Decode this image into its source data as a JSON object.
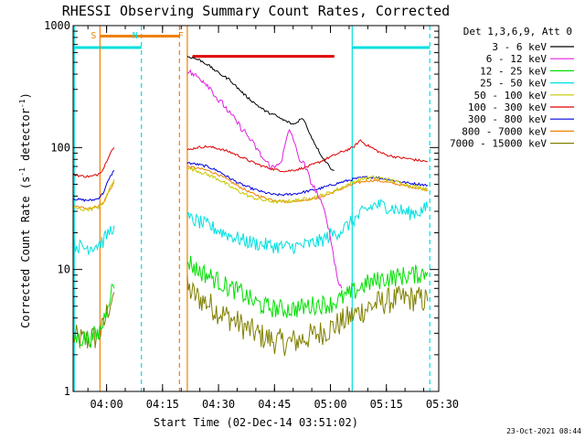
{
  "chart_data": {
    "type": "line",
    "title": "RHESSI Observing Summary Count Rates, Corrected",
    "xlabel": "Start Time (02-Dec-14 03:51:02)",
    "ylabel_main": "Corrected Count Rate (s",
    "ylabel_mid": " detector",
    "ylabel_end": ")",
    "ylabel_sup": "-1",
    "y_scale": "log",
    "ylim": [
      1,
      1000
    ],
    "xlim_minutes": [
      0,
      98
    ],
    "x_ticks": [
      {
        "label": "04:00",
        "minute": 8.97
      },
      {
        "label": "04:15",
        "minute": 23.97
      },
      {
        "label": "04:30",
        "minute": 38.97
      },
      {
        "label": "04:45",
        "minute": 53.97
      },
      {
        "label": "05:00",
        "minute": 68.97
      },
      {
        "label": "05:15",
        "minute": 83.97
      },
      {
        "label": "05:30",
        "minute": 98.97
      }
    ],
    "y_ticks": [
      {
        "label": "1",
        "value": 1
      },
      {
        "label": "10",
        "value": 10
      },
      {
        "label": "100",
        "value": 100
      },
      {
        "label": "1000",
        "value": 1000
      }
    ],
    "legend_header": "Det 1,3,6,9, Att 0",
    "series": [
      {
        "name": "3 - 6 keV",
        "color": "#000000",
        "points": [
          [
            30.6,
            560
          ],
          [
            32,
            545
          ],
          [
            34,
            520
          ],
          [
            36,
            480
          ],
          [
            38,
            430
          ],
          [
            40,
            390
          ],
          [
            42,
            360
          ],
          [
            44,
            310
          ],
          [
            46,
            270
          ],
          [
            48,
            240
          ],
          [
            50,
            215
          ],
          [
            52,
            195
          ],
          [
            54,
            185
          ],
          [
            56,
            170
          ],
          [
            58,
            160
          ],
          [
            59,
            155
          ],
          [
            60,
            160
          ],
          [
            61,
            175
          ],
          [
            62,
            165
          ],
          [
            63,
            140
          ],
          [
            64,
            120
          ],
          [
            65,
            105
          ],
          [
            66,
            92
          ],
          [
            67,
            82
          ],
          [
            68,
            75
          ],
          [
            69,
            68
          ],
          [
            70,
            65
          ]
        ]
      },
      {
        "name": "6 - 12 keV",
        "color": "#e020e0",
        "points": [
          [
            30.6,
            430
          ],
          [
            32,
            400
          ],
          [
            34,
            370
          ],
          [
            36,
            330
          ],
          [
            37,
            300
          ],
          [
            38,
            270
          ],
          [
            39,
            240
          ],
          [
            40,
            230
          ],
          [
            41,
            210
          ],
          [
            42,
            190
          ],
          [
            43,
            175
          ],
          [
            44,
            160
          ],
          [
            45,
            145
          ],
          [
            46,
            135
          ],
          [
            47,
            122
          ],
          [
            48,
            110
          ],
          [
            49,
            100
          ],
          [
            50,
            90
          ],
          [
            51,
            80
          ],
          [
            52,
            75
          ],
          [
            53,
            70
          ],
          [
            54,
            68
          ],
          [
            55,
            75
          ],
          [
            56,
            80
          ],
          [
            57,
            110
          ],
          [
            58,
            140
          ],
          [
            59,
            120
          ],
          [
            60,
            90
          ],
          [
            61,
            78
          ],
          [
            62,
            72
          ],
          [
            63,
            60
          ],
          [
            64,
            50
          ],
          [
            65,
            45
          ],
          [
            66,
            38
          ],
          [
            67,
            32
          ],
          [
            68,
            26
          ],
          [
            69,
            18
          ],
          [
            70,
            12
          ],
          [
            71,
            8
          ],
          [
            72,
            7
          ]
        ]
      },
      {
        "name": "12 - 25 keV",
        "color": "#00e000",
        "points": [
          [
            0,
            2.8
          ],
          [
            3,
            2.7
          ],
          [
            5,
            2.8
          ],
          [
            6.5,
            2.9
          ],
          [
            8,
            3.6
          ],
          [
            9,
            5.0
          ],
          [
            10,
            6.5
          ],
          [
            11,
            7.0
          ]
        ],
        "points2": [
          [
            30.6,
            12
          ],
          [
            33,
            10
          ],
          [
            36,
            9
          ],
          [
            39,
            8
          ],
          [
            42,
            7
          ],
          [
            45,
            6.5
          ],
          [
            48,
            5.5
          ],
          [
            51,
            5
          ],
          [
            54,
            4.8
          ],
          [
            57,
            4.7
          ],
          [
            60,
            4.8
          ],
          [
            63,
            5
          ],
          [
            66,
            5.2
          ],
          [
            69,
            5.2
          ],
          [
            72,
            5.8
          ],
          [
            75,
            6.5
          ],
          [
            78,
            7.5
          ],
          [
            81,
            8
          ],
          [
            84,
            8.5
          ],
          [
            87,
            8.7
          ],
          [
            90,
            9
          ],
          [
            93,
            9.2
          ],
          [
            95,
            9.5
          ]
        ]
      },
      {
        "name": "25 - 50 keV",
        "color": "#00e0e0",
        "points": [
          [
            0,
            16
          ],
          [
            3,
            15
          ],
          [
            5,
            15.5
          ],
          [
            6.5,
            16
          ],
          [
            8,
            17
          ],
          [
            9,
            19
          ],
          [
            10,
            21
          ],
          [
            11,
            23
          ]
        ],
        "points2": [
          [
            30.6,
            26
          ],
          [
            33,
            25
          ],
          [
            36,
            23
          ],
          [
            39,
            21
          ],
          [
            42,
            19
          ],
          [
            45,
            17.5
          ],
          [
            48,
            16.5
          ],
          [
            51,
            16
          ],
          [
            54,
            15.5
          ],
          [
            57,
            15.3
          ],
          [
            60,
            15.5
          ],
          [
            63,
            16
          ],
          [
            66,
            17
          ],
          [
            69,
            19
          ],
          [
            72,
            21
          ],
          [
            75,
            25
          ],
          [
            78,
            30
          ],
          [
            81,
            34
          ],
          [
            84,
            33
          ],
          [
            87,
            31
          ],
          [
            90,
            29
          ],
          [
            93,
            30
          ],
          [
            95,
            32
          ]
        ]
      },
      {
        "name": "50 - 100 keV",
        "color": "#c8c800",
        "points": [
          [
            0,
            32
          ],
          [
            3,
            31
          ],
          [
            5,
            31.5
          ],
          [
            6.5,
            32
          ],
          [
            8,
            34
          ],
          [
            9,
            40
          ],
          [
            10,
            48
          ],
          [
            11,
            55
          ]
        ],
        "points2": [
          [
            30.6,
            68
          ],
          [
            33,
            65
          ],
          [
            36,
            60
          ],
          [
            39,
            55
          ],
          [
            42,
            48
          ],
          [
            45,
            43
          ],
          [
            48,
            39
          ],
          [
            51,
            37
          ],
          [
            54,
            36
          ],
          [
            57,
            36
          ],
          [
            60,
            37
          ],
          [
            63,
            38
          ],
          [
            66,
            40
          ],
          [
            69,
            43
          ],
          [
            72,
            47
          ],
          [
            75,
            52
          ],
          [
            78,
            56
          ],
          [
            81,
            57
          ],
          [
            84,
            55
          ],
          [
            87,
            52
          ],
          [
            90,
            49
          ],
          [
            93,
            47
          ],
          [
            95,
            46
          ]
        ]
      },
      {
        "name": "100 - 300 keV",
        "color": "#e00000",
        "points": [
          [
            0,
            60
          ],
          [
            3,
            58
          ],
          [
            5,
            58
          ],
          [
            6.5,
            60
          ],
          [
            8,
            66
          ],
          [
            9,
            78
          ],
          [
            10,
            92
          ],
          [
            11,
            100
          ]
        ],
        "points2": [
          [
            30.6,
            95
          ],
          [
            33,
            100
          ],
          [
            36,
            102
          ],
          [
            39,
            98
          ],
          [
            42,
            92
          ],
          [
            45,
            84
          ],
          [
            48,
            76
          ],
          [
            51,
            70
          ],
          [
            54,
            66
          ],
          [
            57,
            64
          ],
          [
            60,
            66
          ],
          [
            63,
            70
          ],
          [
            66,
            76
          ],
          [
            69,
            84
          ],
          [
            72,
            92
          ],
          [
            75,
            100
          ],
          [
            77,
            115
          ],
          [
            78,
            108
          ],
          [
            80,
            100
          ],
          [
            82,
            92
          ],
          [
            84,
            87
          ],
          [
            87,
            83
          ],
          [
            90,
            81
          ],
          [
            93,
            78
          ],
          [
            95,
            77
          ]
        ],
        "bar_from": 32,
        "bar_to": 70,
        "bar_value": 560
      },
      {
        "name": "300 - 800 keV",
        "color": "#0000e0",
        "points": [
          [
            0,
            38
          ],
          [
            3,
            37
          ],
          [
            5,
            37
          ],
          [
            6.5,
            38
          ],
          [
            8,
            42
          ],
          [
            9,
            50
          ],
          [
            10,
            58
          ],
          [
            11,
            65
          ]
        ],
        "points2": [
          [
            30.6,
            75
          ],
          [
            33,
            73
          ],
          [
            36,
            70
          ],
          [
            39,
            64
          ],
          [
            42,
            56
          ],
          [
            45,
            50
          ],
          [
            48,
            46
          ],
          [
            51,
            43
          ],
          [
            54,
            41
          ],
          [
            57,
            41
          ],
          [
            60,
            42
          ],
          [
            63,
            44
          ],
          [
            66,
            46
          ],
          [
            69,
            49
          ],
          [
            72,
            52
          ],
          [
            75,
            55
          ],
          [
            78,
            57
          ],
          [
            81,
            57
          ],
          [
            84,
            55
          ],
          [
            87,
            53
          ],
          [
            90,
            51
          ],
          [
            93,
            50
          ],
          [
            95,
            49
          ]
        ]
      },
      {
        "name": "800 - 7000 keV",
        "color": "#f08000",
        "points": [
          [
            0,
            33
          ],
          [
            3,
            32
          ],
          [
            5,
            32
          ],
          [
            6.5,
            33
          ],
          [
            8,
            35
          ],
          [
            9,
            40
          ],
          [
            10,
            46
          ],
          [
            11,
            52
          ]
        ],
        "points2": [
          [
            30.6,
            70
          ],
          [
            33,
            68
          ],
          [
            36,
            65
          ],
          [
            39,
            60
          ],
          [
            42,
            53
          ],
          [
            45,
            47
          ],
          [
            48,
            42
          ],
          [
            51,
            39
          ],
          [
            54,
            37
          ],
          [
            57,
            36
          ],
          [
            60,
            36.5
          ],
          [
            63,
            37.5
          ],
          [
            66,
            39
          ],
          [
            69,
            42
          ],
          [
            72,
            46
          ],
          [
            75,
            50
          ],
          [
            78,
            53
          ],
          [
            81,
            54
          ],
          [
            84,
            52
          ],
          [
            87,
            50
          ],
          [
            90,
            48
          ],
          [
            93,
            46
          ],
          [
            95,
            45
          ]
        ],
        "bar_from": 7.2,
        "bar_to": 28.5,
        "bar_value": 820
      },
      {
        "name": "7000 - 15000 keV",
        "color": "#808000",
        "points": [
          [
            0,
            2.8
          ],
          [
            3,
            2.6
          ],
          [
            5,
            2.7
          ],
          [
            6.5,
            2.8
          ],
          [
            8,
            3.3
          ],
          [
            9,
            4.4
          ],
          [
            10,
            5.5
          ],
          [
            11,
            6.5
          ]
        ],
        "points2": [
          [
            30.6,
            7
          ],
          [
            33,
            6
          ],
          [
            36,
            5.3
          ],
          [
            39,
            4.5
          ],
          [
            42,
            4
          ],
          [
            45,
            3.5
          ],
          [
            48,
            3.1
          ],
          [
            51,
            2.8
          ],
          [
            54,
            2.6
          ],
          [
            57,
            2.5
          ],
          [
            60,
            2.6
          ],
          [
            63,
            2.8
          ],
          [
            66,
            3
          ],
          [
            69,
            3.3
          ],
          [
            72,
            3.7
          ],
          [
            75,
            4.2
          ],
          [
            78,
            4.7
          ],
          [
            81,
            5.2
          ],
          [
            84,
            5.5
          ],
          [
            87,
            5.7
          ],
          [
            90,
            5.8
          ],
          [
            93,
            5.7
          ],
          [
            95,
            5.5
          ]
        ]
      }
    ],
    "markers": [
      {
        "label": "S",
        "minute": 7.2,
        "color": "#f08000",
        "style": "solid"
      },
      {
        "label": "N",
        "minute": 18.3,
        "color": "#00e0e0",
        "style": "dashed"
      },
      {
        "label": "F",
        "minute": 30.6,
        "color": "#f08000",
        "style": "solid"
      }
    ],
    "extra_lines": [
      {
        "minute": 0.3,
        "color": "#00e0e0",
        "style": "solid"
      },
      {
        "minute": 28.5,
        "color": "#f08000",
        "style": "dashed"
      },
      {
        "minute": 74.8,
        "color": "#00e0e0",
        "style": "solid"
      },
      {
        "minute": 95.6,
        "color": "#00e0e0",
        "style": "dashed"
      }
    ],
    "cyan_bars": [
      {
        "from": 0.3,
        "to": 18.3,
        "value": 660
      },
      {
        "from": 74.8,
        "to": 95.6,
        "value": 660
      }
    ],
    "timestamp": "23-Oct-2021 08:44"
  }
}
